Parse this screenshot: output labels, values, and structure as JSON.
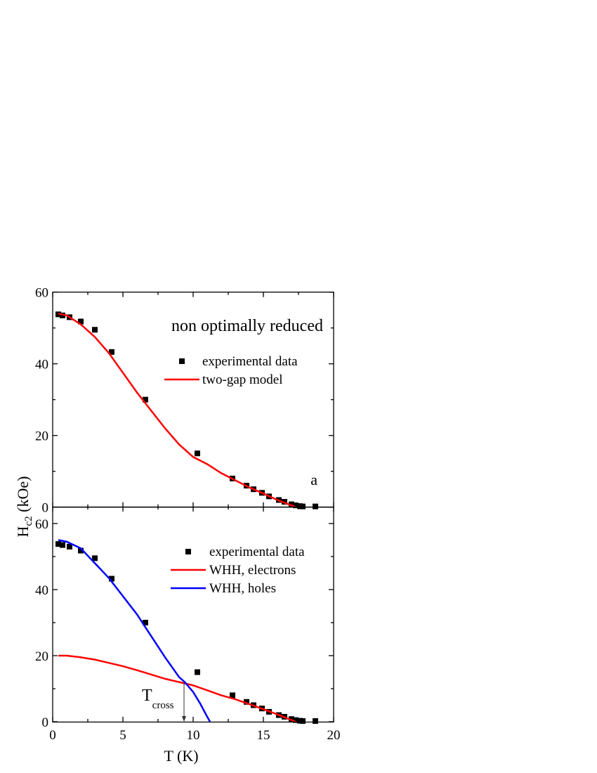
{
  "chart_data": [
    {
      "type": "scatter+line",
      "panel": "top",
      "annotation": "non optimally reduced",
      "panel_label": "a",
      "xlim": [
        0,
        20
      ],
      "ylim": [
        0,
        60
      ],
      "xticks": [
        0,
        5,
        10,
        15,
        20
      ],
      "yticks": [
        "0",
        "20",
        "40",
        "60"
      ],
      "ytick_values": [
        0,
        20,
        40,
        60
      ],
      "grid": false,
      "legend_position": "upper-right",
      "series": [
        {
          "name": "experimental data",
          "kind": "scatter",
          "color": "#000000",
          "x": [
            0.4,
            0.7,
            1.2,
            2,
            3,
            4.2,
            6.6,
            10.3,
            12.8,
            13.8,
            14.3,
            14.9,
            15.4,
            16.1,
            16.5,
            17,
            17.3,
            17.6,
            17.8,
            18.7
          ],
          "y": [
            53.8,
            53.5,
            53,
            51.8,
            49.5,
            43.3,
            30,
            15,
            8,
            6,
            5,
            4,
            3,
            2,
            1.5,
            0.8,
            0.5,
            0.3,
            0.2,
            0.2
          ]
        },
        {
          "name": "two-gap model",
          "kind": "line",
          "color": "#ff0000",
          "x": [
            0.4,
            1,
            2,
            3,
            4,
            5,
            6,
            7,
            8,
            9,
            10,
            11,
            12,
            13,
            14,
            15,
            16,
            17,
            17.3
          ],
          "y": [
            54,
            53.5,
            51,
            47.5,
            43,
            37.5,
            32,
            27,
            22,
            17.5,
            14,
            12,
            9.5,
            7.5,
            5.5,
            3.8,
            2,
            0.5,
            0
          ]
        }
      ]
    },
    {
      "type": "scatter+line",
      "panel": "bottom",
      "xlabel": "T (K)",
      "xlim": [
        0,
        20
      ],
      "ylim": [
        0,
        65
      ],
      "xticks": [
        "0",
        "5",
        "10",
        "15",
        "20"
      ],
      "xtick_values": [
        0,
        5,
        10,
        15,
        20
      ],
      "yticks": [
        "0",
        "20",
        "40",
        "60"
      ],
      "ytick_values": [
        0,
        20,
        40,
        60
      ],
      "grid": false,
      "legend_position": "upper-right",
      "annotation": {
        "text": "T",
        "subscript": "cross",
        "x": 9.35,
        "y": 12
      },
      "series": [
        {
          "name": "experimental data",
          "kind": "scatter",
          "color": "#000000",
          "x": [
            0.4,
            0.7,
            1.2,
            2,
            3,
            4.2,
            6.6,
            10.3,
            12.8,
            13.8,
            14.3,
            14.9,
            15.4,
            16.1,
            16.5,
            17,
            17.3,
            17.6,
            17.8,
            18.7
          ],
          "y": [
            53.8,
            53.5,
            53,
            51.8,
            49.5,
            43.3,
            30,
            15,
            8,
            6,
            5,
            4,
            3,
            2,
            1.5,
            0.8,
            0.5,
            0.3,
            0.2,
            0.2
          ]
        },
        {
          "name": "WHH, electrons",
          "kind": "line",
          "color": "#ff0000",
          "x": [
            0.4,
            1,
            2,
            3,
            4,
            5,
            6,
            7,
            8,
            9,
            10,
            11,
            12,
            13,
            14,
            15,
            16,
            17,
            17.3
          ],
          "y": [
            20,
            20,
            19.5,
            18.8,
            17.8,
            16.8,
            15.6,
            14.3,
            13,
            12,
            11,
            9.5,
            8,
            6.8,
            5.3,
            3.8,
            2.2,
            0.5,
            0
          ]
        },
        {
          "name": "WHH, holes",
          "kind": "line",
          "color": "#0000ff",
          "x": [
            0.4,
            1,
            2,
            3,
            4,
            5,
            6,
            7,
            8,
            9,
            9.4,
            10,
            10.5,
            11,
            11.2
          ],
          "y": [
            55,
            54.5,
            52.5,
            48,
            43.5,
            38,
            32.5,
            26,
            19.5,
            13.5,
            12,
            9,
            5.5,
            1.5,
            0
          ]
        }
      ]
    }
  ],
  "ylabel": {
    "main": "H",
    "subscript": "c2",
    "unit": " (kOe)"
  }
}
